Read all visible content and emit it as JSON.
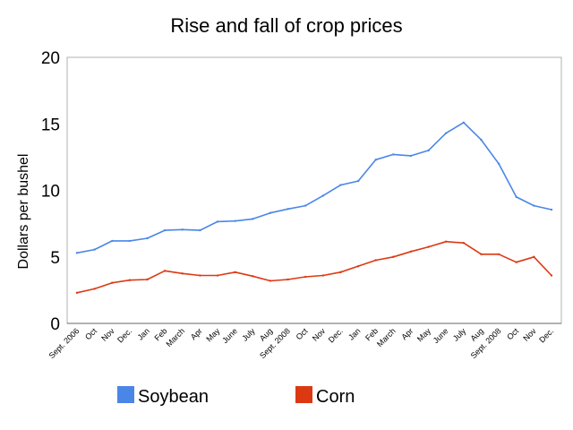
{
  "chart_data": {
    "type": "line",
    "title": "Rise and fall of crop prices",
    "xlabel": "",
    "ylabel": "Dollars per bushel",
    "ylim": [
      0,
      20
    ],
    "yticks": [
      0,
      5,
      10,
      15,
      20
    ],
    "grid": false,
    "legend_position": "bottom",
    "categories": [
      "Sept. 2006",
      "Oct",
      "Nov",
      "Dec.",
      "Jan",
      "Feb",
      "March",
      "Apr",
      "May",
      "June",
      "July",
      "Aug",
      "Sept. 2008",
      "Oct",
      "Nov",
      "Dec.",
      "Jan",
      "Feb",
      "March",
      "Apr",
      "May",
      "June",
      "July",
      "Aug",
      "Sept. 2008",
      "Oct",
      "Nov",
      "Dec."
    ],
    "series": [
      {
        "name": "Soybean",
        "color": "#4a86e8",
        "values": [
          5.3,
          5.55,
          6.2,
          6.2,
          6.4,
          7.0,
          7.05,
          7.0,
          7.65,
          7.7,
          7.85,
          8.3,
          8.6,
          8.85,
          9.6,
          10.4,
          10.7,
          12.3,
          12.7,
          12.6,
          13.0,
          14.3,
          15.1,
          13.8,
          12.0,
          9.5,
          8.85,
          8.55
        ]
      },
      {
        "name": "Corn",
        "color": "#dc3912",
        "values": [
          2.3,
          2.6,
          3.05,
          3.25,
          3.3,
          3.95,
          3.75,
          3.6,
          3.6,
          3.85,
          3.55,
          3.2,
          3.3,
          3.5,
          3.6,
          3.85,
          4.3,
          4.75,
          5.0,
          5.4,
          5.75,
          6.15,
          6.05,
          5.2,
          5.2,
          4.6,
          5.0,
          3.6
        ]
      }
    ]
  }
}
